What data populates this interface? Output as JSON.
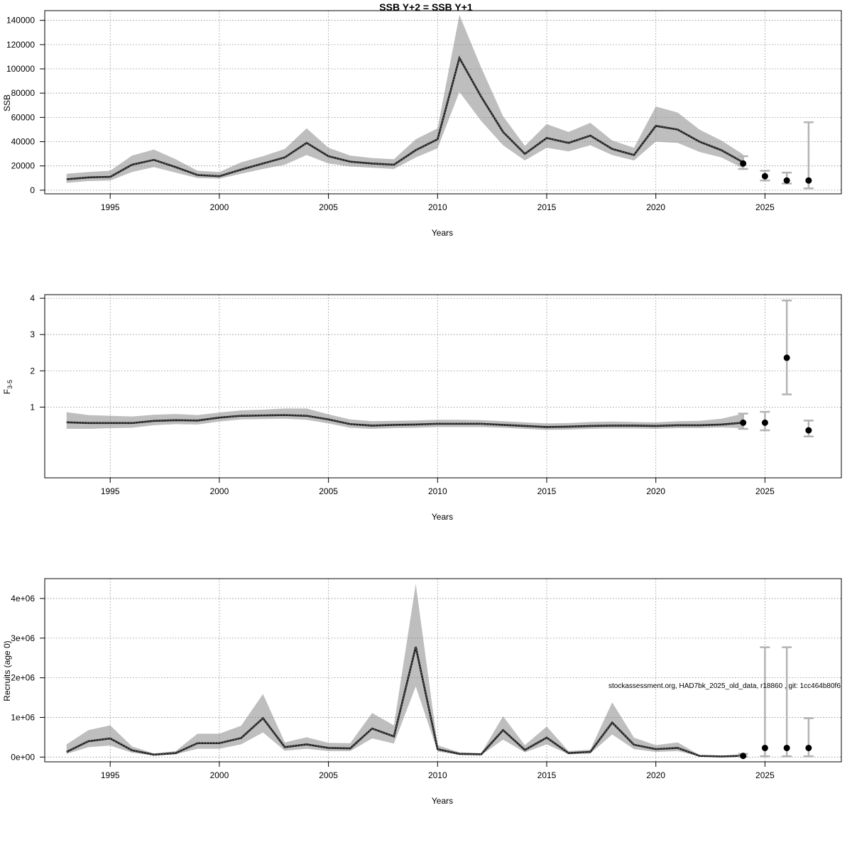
{
  "footer_text": "stockassessment.org, HAD7bk_2025_old_data, r18860 , git: 1cc464b80f6",
  "colors": {
    "band": "#bebebe",
    "line": "#1a1a1a",
    "point": "#000000",
    "errorbar": "#b3b3b3",
    "grid": "#888888"
  },
  "chart_data": [
    {
      "type": "line",
      "title": "SSB Y+2 = SSB Y+1",
      "xlabel": "Years",
      "ylabel": "SSB",
      "xlim": [
        1992,
        2028.5
      ],
      "ylim": [
        -3000,
        148000
      ],
      "x_ticks": [
        "1995",
        "2000",
        "2005",
        "2010",
        "2015",
        "2020",
        "2025"
      ],
      "y_ticks": [
        "0",
        "20000",
        "40000",
        "60000",
        "80000",
        "100000",
        "120000",
        "140000"
      ],
      "grid": true,
      "x": [
        1993,
        1994,
        1995,
        1996,
        1997,
        1998,
        1999,
        2000,
        2001,
        2002,
        2003,
        2004,
        2005,
        2006,
        2007,
        2008,
        2009,
        2010,
        2011,
        2012,
        2013,
        2014,
        2015,
        2016,
        2017,
        2018,
        2019,
        2020,
        2021,
        2022,
        2023,
        2024
      ],
      "series": [
        {
          "estimate": [
            9000,
            10500,
            11000,
            21000,
            25000,
            19000,
            12500,
            11500,
            17000,
            22000,
            27000,
            39000,
            28000,
            23500,
            22000,
            21000,
            33000,
            42000,
            109000,
            77000,
            48000,
            30000,
            43000,
            39000,
            45000,
            34000,
            29000,
            53000,
            50000,
            40000,
            33000,
            23000
          ],
          "lower": [
            6000,
            7500,
            8000,
            15000,
            19000,
            14500,
            10000,
            9500,
            13500,
            17500,
            21000,
            29000,
            22000,
            19500,
            18500,
            17500,
            27000,
            34500,
            81000,
            57000,
            37000,
            24500,
            35000,
            32000,
            37000,
            29000,
            24500,
            40000,
            39000,
            31500,
            27000,
            18000
          ],
          "upper": [
            13500,
            15000,
            16000,
            28500,
            33500,
            25500,
            16000,
            15000,
            23000,
            28000,
            34000,
            51000,
            35000,
            28500,
            26500,
            25500,
            42000,
            51000,
            144500,
            101000,
            61000,
            36500,
            54500,
            48000,
            55500,
            41000,
            35000,
            69000,
            64000,
            50000,
            41000,
            29500
          ]
        }
      ],
      "forecast": [
        {
          "x": 2024,
          "value": 22000,
          "low": 17500,
          "high": 28000
        },
        {
          "x": 2025,
          "value": 11500,
          "low": 8000,
          "high": 16000
        },
        {
          "x": 2026,
          "value": 8000,
          "low": 5500,
          "high": 14500
        },
        {
          "x": 2027,
          "value": 8000,
          "low": 1500,
          "high": 56000
        }
      ]
    },
    {
      "type": "line",
      "title": "",
      "xlabel": "Years",
      "ylabel": "F",
      "ylabel_subscript": "3-5",
      "xlim": [
        1992,
        2028.5
      ],
      "ylim": [
        -0.95,
        4.1
      ],
      "x_ticks": [
        "1995",
        "2000",
        "2005",
        "2010",
        "2015",
        "2020",
        "2025"
      ],
      "y_ticks": [
        "1",
        "2",
        "3",
        "4"
      ],
      "grid": true,
      "x": [
        1993,
        1994,
        1995,
        1996,
        1997,
        1998,
        1999,
        2000,
        2001,
        2002,
        2003,
        2004,
        2005,
        2006,
        2007,
        2008,
        2009,
        2010,
        2011,
        2012,
        2013,
        2014,
        2015,
        2016,
        2017,
        2018,
        2019,
        2020,
        2021,
        2022,
        2023,
        2024
      ],
      "series": [
        {
          "estimate": [
            0.58,
            0.56,
            0.56,
            0.56,
            0.62,
            0.64,
            0.63,
            0.71,
            0.76,
            0.77,
            0.78,
            0.76,
            0.66,
            0.53,
            0.49,
            0.51,
            0.52,
            0.54,
            0.54,
            0.54,
            0.51,
            0.48,
            0.45,
            0.46,
            0.48,
            0.49,
            0.49,
            0.48,
            0.5,
            0.5,
            0.52,
            0.57
          ],
          "lower": [
            0.4,
            0.4,
            0.42,
            0.43,
            0.5,
            0.53,
            0.52,
            0.6,
            0.66,
            0.67,
            0.68,
            0.65,
            0.55,
            0.43,
            0.4,
            0.42,
            0.43,
            0.45,
            0.45,
            0.45,
            0.43,
            0.4,
            0.37,
            0.38,
            0.4,
            0.41,
            0.41,
            0.4,
            0.42,
            0.42,
            0.44,
            0.42
          ],
          "upper": [
            0.86,
            0.78,
            0.76,
            0.74,
            0.79,
            0.81,
            0.78,
            0.85,
            0.91,
            0.93,
            0.96,
            0.96,
            0.8,
            0.66,
            0.61,
            0.62,
            0.63,
            0.65,
            0.65,
            0.64,
            0.61,
            0.58,
            0.55,
            0.56,
            0.59,
            0.6,
            0.59,
            0.58,
            0.61,
            0.62,
            0.68,
            0.82
          ]
        }
      ],
      "forecast": [
        {
          "x": 2024,
          "value": 0.57,
          "low": 0.4,
          "high": 0.82
        },
        {
          "x": 2025,
          "value": 0.57,
          "low": 0.36,
          "high": 0.87
        },
        {
          "x": 2026,
          "value": 2.36,
          "low": 1.35,
          "high": 3.94
        },
        {
          "x": 2027,
          "value": 0.36,
          "low": 0.19,
          "high": 0.63
        }
      ]
    },
    {
      "type": "line",
      "title": "",
      "xlabel": "Years",
      "ylabel": "Recruits (age 0)",
      "xlim": [
        1992,
        2028.5
      ],
      "ylim": [
        -120000,
        4500000
      ],
      "x_ticks": [
        "1995",
        "2000",
        "2005",
        "2010",
        "2015",
        "2020",
        "2025"
      ],
      "y_ticks": [
        "0e+00",
        "1e+06",
        "2e+06",
        "3e+06",
        "4e+06"
      ],
      "grid": true,
      "x": [
        1993,
        1994,
        1995,
        1996,
        1997,
        1998,
        1999,
        2000,
        2001,
        2002,
        2003,
        2004,
        2005,
        2006,
        2007,
        2008,
        2009,
        2010,
        2011,
        2012,
        2013,
        2014,
        2015,
        2016,
        2017,
        2018,
        2019,
        2020,
        2021,
        2022,
        2023,
        2024
      ],
      "series": [
        {
          "estimate": [
            130000,
            400000,
            470000,
            170000,
            60000,
            100000,
            350000,
            350000,
            480000,
            980000,
            250000,
            320000,
            230000,
            220000,
            720000,
            520000,
            2780000,
            200000,
            80000,
            70000,
            680000,
            180000,
            490000,
            100000,
            130000,
            870000,
            310000,
            200000,
            230000,
            30000,
            15000,
            30000
          ],
          "lower": [
            80000,
            250000,
            290000,
            110000,
            40000,
            70000,
            210000,
            210000,
            320000,
            620000,
            160000,
            210000,
            150000,
            150000,
            470000,
            340000,
            1780000,
            140000,
            55000,
            50000,
            440000,
            120000,
            320000,
            70000,
            90000,
            570000,
            200000,
            130000,
            150000,
            20000,
            10000,
            15000
          ],
          "upper": [
            320000,
            680000,
            800000,
            270000,
            90000,
            150000,
            590000,
            590000,
            790000,
            1590000,
            370000,
            500000,
            360000,
            350000,
            1110000,
            800000,
            4370000,
            300000,
            120000,
            100000,
            1030000,
            300000,
            770000,
            150000,
            190000,
            1380000,
            490000,
            300000,
            370000,
            50000,
            30000,
            80000
          ]
        }
      ],
      "forecast": [
        {
          "x": 2024,
          "value": 30000,
          "low": 8000,
          "high": 80000
        },
        {
          "x": 2025,
          "value": 230000,
          "low": 20000,
          "high": 2770000
        },
        {
          "x": 2026,
          "value": 230000,
          "low": 20000,
          "high": 2770000
        },
        {
          "x": 2027,
          "value": 230000,
          "low": 20000,
          "high": 980000
        }
      ]
    }
  ]
}
